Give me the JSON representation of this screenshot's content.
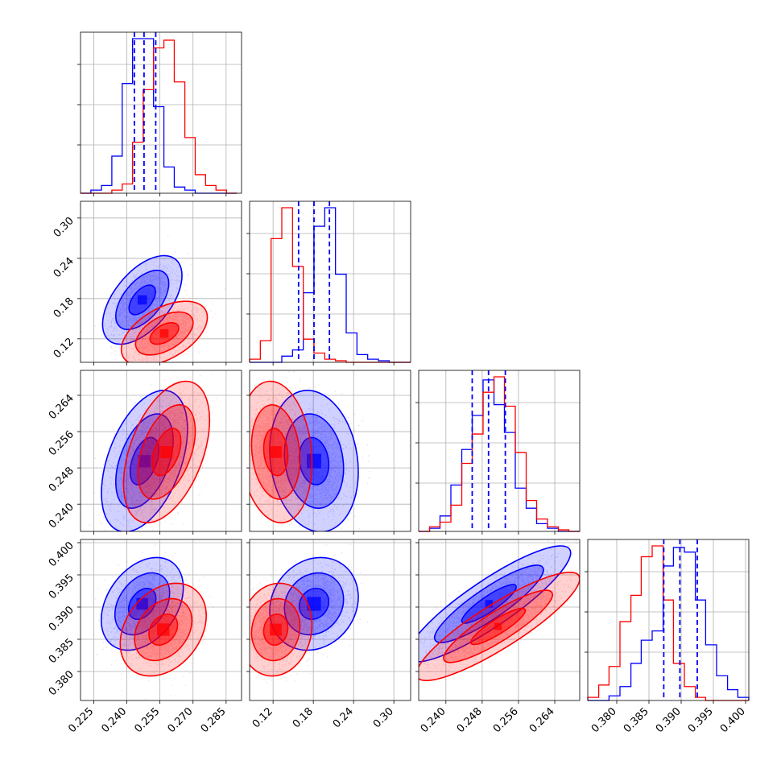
{
  "chart_data": {
    "type": "corner",
    "title": "",
    "grid": true,
    "series": [
      {
        "name": "",
        "color": "#0000ff",
        "quantiles_color": "#0000ff"
      },
      {
        "name": "",
        "color": "#ff0000"
      }
    ],
    "parameters": [
      {
        "range": [
          0.219,
          0.292
        ],
        "ticks": [
          0.225,
          0.24,
          0.255,
          0.27,
          0.285
        ],
        "tick_labels": [
          "0.225",
          "0.240",
          "0.255",
          "0.270",
          "0.285"
        ]
      },
      {
        "range": [
          0.085,
          0.325
        ],
        "ticks": [
          0.12,
          0.18,
          0.24,
          0.3
        ],
        "tick_labels": [
          "0.12",
          "0.18",
          "0.24",
          "0.30"
        ]
      },
      {
        "range": [
          0.234,
          0.2695
        ],
        "ticks": [
          0.24,
          0.248,
          0.256,
          0.264
        ],
        "tick_labels": [
          "0.240",
          "0.248",
          "0.256",
          "0.264"
        ]
      },
      {
        "range": [
          0.3755,
          0.4005
        ],
        "ticks": [
          0.38,
          0.385,
          0.39,
          0.395,
          0.4
        ],
        "tick_labels": [
          "0.380",
          "0.385",
          "0.390",
          "0.395",
          "0.400"
        ]
      }
    ],
    "quantiles": [
      [
        0.2434,
        0.2478,
        0.2531
      ],
      [
        0.158,
        0.181,
        0.204
      ],
      [
        0.2458,
        0.2494,
        0.2531
      ],
      [
        0.3873,
        0.3898,
        0.3925
      ]
    ],
    "histograms": [
      {
        "bins": [
          0.219,
          0.2237,
          0.2285,
          0.2332,
          0.2379,
          0.2426,
          0.2474,
          0.2521,
          0.2568,
          0.2615,
          0.2663,
          0.271,
          0.2757,
          0.2804,
          0.2852,
          0.2899
        ],
        "blue": [
          0.0,
          0.02,
          0.05,
          0.24,
          0.71,
          1.0,
          1.0,
          0.56,
          0.17,
          0.04,
          0.02,
          0.0,
          0.0,
          0.0,
          0.0
        ],
        "red": [
          0.0,
          0.0,
          0.0,
          0.02,
          0.06,
          0.33,
          0.67,
          0.94,
          0.99,
          0.72,
          0.36,
          0.12,
          0.05,
          0.02,
          0.0
        ]
      },
      {
        "bins": [
          0.085,
          0.101,
          0.117,
          0.133,
          0.149,
          0.165,
          0.181,
          0.197,
          0.213,
          0.229,
          0.245,
          0.261,
          0.277,
          0.293,
          0.309,
          0.325
        ],
        "blue": [
          0.0,
          0.0,
          0.0,
          0.04,
          0.08,
          0.45,
          0.88,
          1.0,
          0.57,
          0.19,
          0.05,
          0.02,
          0.01,
          0.0,
          0.0
        ],
        "red": [
          0.02,
          0.14,
          0.8,
          1.0,
          0.62,
          0.15,
          0.06,
          0.02,
          0.01,
          0.0,
          0.0,
          0.0,
          0.0,
          0.0,
          0.0
        ]
      },
      {
        "bins": [
          0.234,
          0.2364,
          0.2387,
          0.2411,
          0.2435,
          0.2458,
          0.2482,
          0.2506,
          0.2529,
          0.2553,
          0.2577,
          0.26,
          0.2624,
          0.2648,
          0.2671,
          0.2695
        ],
        "blue": [
          0.0,
          0.02,
          0.1,
          0.3,
          0.53,
          0.75,
          0.98,
          0.82,
          0.64,
          0.28,
          0.15,
          0.05,
          0.02,
          0.0,
          0.0
        ],
        "red": [
          0.0,
          0.03,
          0.06,
          0.17,
          0.44,
          0.63,
          0.9,
          1.0,
          0.81,
          0.51,
          0.2,
          0.08,
          0.03,
          0.01,
          0.0
        ]
      },
      {
        "bins": [
          0.3755,
          0.3772,
          0.3788,
          0.3805,
          0.3822,
          0.3838,
          0.3855,
          0.3872,
          0.3888,
          0.3905,
          0.3922,
          0.3938,
          0.3955,
          0.3972,
          0.3988,
          0.4005
        ],
        "blue": [
          0.0,
          0.0,
          0.03,
          0.09,
          0.24,
          0.39,
          0.45,
          0.87,
          0.99,
          0.96,
          0.65,
          0.36,
          0.16,
          0.07,
          0.02
        ],
        "red": [
          0.02,
          0.1,
          0.22,
          0.51,
          0.68,
          0.93,
          1.0,
          0.65,
          0.24,
          0.09,
          0.02,
          0.0,
          0.0,
          0.0,
          0.0
        ]
      }
    ],
    "scatter_2d": [
      {
        "x": 0,
        "y": 1,
        "blue": {
          "mean": [
            0.247,
            0.178
          ],
          "sd": [
            0.006,
            0.022
          ],
          "rho": 0.55
        },
        "red": {
          "mean": [
            0.257,
            0.128
          ],
          "sd": [
            0.0065,
            0.016
          ],
          "rho": 0.5
        }
      },
      {
        "x": 0,
        "y": 2,
        "blue": {
          "mean": [
            0.248,
            0.2495
          ],
          "sd": [
            0.0065,
            0.0052
          ],
          "rho": 0.45
        },
        "red": {
          "mean": [
            0.258,
            0.2515
          ],
          "sd": [
            0.0065,
            0.0052
          ],
          "rho": 0.45
        }
      },
      {
        "x": 1,
        "y": 2,
        "blue": {
          "mean": [
            0.181,
            0.2495
          ],
          "sd": [
            0.022,
            0.0052
          ],
          "rho": -0.15
        },
        "red": {
          "mean": [
            0.124,
            0.2515
          ],
          "sd": [
            0.018,
            0.0052
          ],
          "rho": -0.15
        }
      },
      {
        "x": 0,
        "y": 3,
        "blue": {
          "mean": [
            0.247,
            0.3905
          ],
          "sd": [
            0.0062,
            0.0024
          ],
          "rho": 0.35
        },
        "red": {
          "mean": [
            0.2565,
            0.3865
          ],
          "sd": [
            0.0065,
            0.0024
          ],
          "rho": 0.3
        }
      },
      {
        "x": 1,
        "y": 3,
        "blue": {
          "mean": [
            0.181,
            0.3905
          ],
          "sd": [
            0.022,
            0.0024
          ],
          "rho": 0.15
        },
        "red": {
          "mean": [
            0.124,
            0.3865
          ],
          "sd": [
            0.018,
            0.0024
          ],
          "rho": 0.1
        }
      },
      {
        "x": 2,
        "y": 3,
        "blue": {
          "mean": [
            0.2495,
            0.3905
          ],
          "sd": [
            0.006,
            0.003
          ],
          "rho": 0.88
        },
        "red": {
          "mean": [
            0.2515,
            0.387
          ],
          "sd": [
            0.006,
            0.0028
          ],
          "rho": 0.88
        }
      }
    ]
  }
}
